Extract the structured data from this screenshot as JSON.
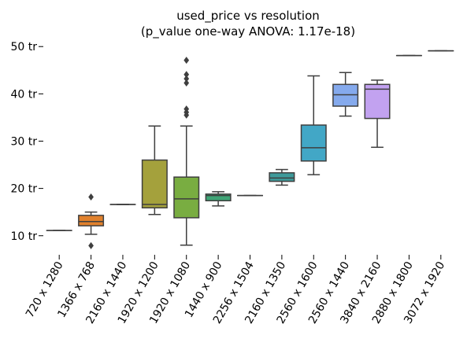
{
  "chart_data": {
    "type": "box",
    "title": "used_price vs resolution",
    "subtitle": "(p_value one-way ANOVA: 1.17e-18)",
    "xlabel": "",
    "ylabel": "",
    "y_unit_suffix": " tr",
    "y_ticks": [
      10,
      20,
      30,
      40,
      50
    ],
    "ylim": [
      6.3,
      51.2
    ],
    "grid": false,
    "legend": "none",
    "categories": [
      "720 x 1280",
      "1366 x 768",
      "2160 x 1440",
      "1920 x 1200",
      "1920 x 1080",
      "1440 x 900",
      "2256 x 1504",
      "2160 x 1350",
      "2560 x 1600",
      "2560 x 1440",
      "3840 x 2160",
      "2880 x 1800",
      "3072 x 1920"
    ],
    "boxes": [
      {
        "category": "720 x 1280",
        "whislo": 11.1,
        "q1": 11.1,
        "med": 11.1,
        "q3": 11.1,
        "whishi": 11.1,
        "fliers": [],
        "color": "#3274a1"
      },
      {
        "category": "1366 x 768",
        "whislo": 10.3,
        "q1": 12.1,
        "med": 13.0,
        "q3": 14.3,
        "whishi": 15.0,
        "fliers": [
          18.2,
          7.9
        ],
        "color": "#e1812c"
      },
      {
        "category": "2160 x 1440",
        "whislo": 16.6,
        "q1": 16.6,
        "med": 16.6,
        "q3": 16.6,
        "whishi": 16.6,
        "fliers": [],
        "color": "#3a923a"
      },
      {
        "category": "1920 x 1200",
        "whislo": 14.5,
        "q1": 15.9,
        "med": 16.6,
        "q3": 26.0,
        "whishi": 33.2,
        "fliers": [],
        "color": "#a4a13c"
      },
      {
        "category": "1920 x 1080",
        "whislo": 8.0,
        "q1": 13.8,
        "med": 17.8,
        "q3": 22.4,
        "whishi": 33.2,
        "fliers": [
          35.5,
          36.1,
          36.8,
          42.3,
          43.2,
          44.1,
          47.1
        ],
        "color": "#79ad41"
      },
      {
        "category": "1440 x 900",
        "whislo": 16.3,
        "q1": 17.4,
        "med": 18.5,
        "q3": 18.8,
        "whishi": 19.3,
        "fliers": [],
        "color": "#3fa476"
      },
      {
        "category": "2256 x 1504",
        "whislo": 18.5,
        "q1": 18.5,
        "med": 18.5,
        "q3": 18.5,
        "whishi": 18.5,
        "fliers": [],
        "color": "#3a8f5a"
      },
      {
        "category": "2160 x 1350",
        "whislo": 20.7,
        "q1": 21.5,
        "med": 22.2,
        "q3": 23.3,
        "whishi": 24.0,
        "fliers": [],
        "color": "#3e9a9a"
      },
      {
        "category": "2560 x 1600",
        "whislo": 22.9,
        "q1": 25.8,
        "med": 28.6,
        "q3": 33.4,
        "whishi": 43.8,
        "fliers": [],
        "color": "#42a7c6"
      },
      {
        "category": "2560 x 1440",
        "whislo": 35.3,
        "q1": 37.4,
        "med": 39.8,
        "q3": 42.0,
        "whishi": 44.5,
        "fliers": [],
        "color": "#85aaed"
      },
      {
        "category": "3840 x 2160",
        "whislo": 28.7,
        "q1": 34.8,
        "med": 41.0,
        "q3": 42.0,
        "whishi": 42.9,
        "fliers": [],
        "color": "#c2a2f0"
      },
      {
        "category": "2880 x 1800",
        "whislo": 48.1,
        "q1": 48.1,
        "med": 48.1,
        "q3": 48.1,
        "whishi": 48.1,
        "fliers": [],
        "color": "#e58ed6"
      },
      {
        "category": "3072 x 1920",
        "whislo": 49.1,
        "q1": 49.1,
        "med": 49.1,
        "q3": 49.1,
        "whishi": 49.1,
        "fliers": [],
        "color": "#f28e8e"
      }
    ]
  }
}
